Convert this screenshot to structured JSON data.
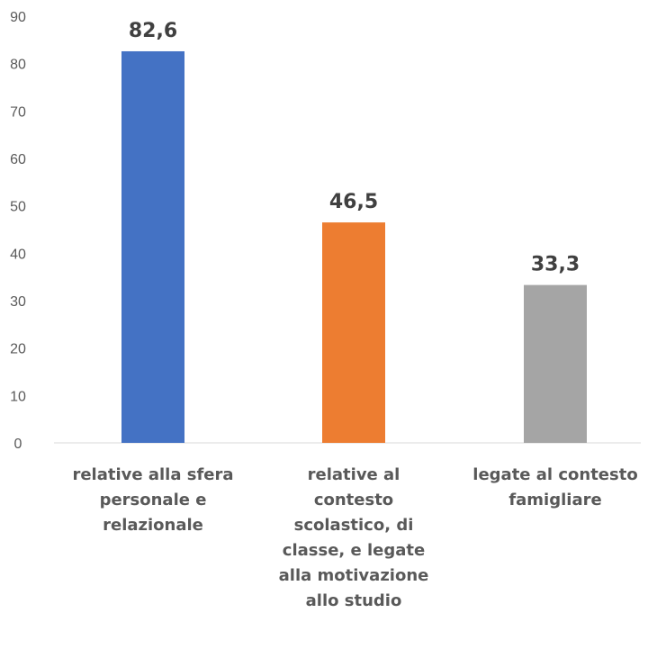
{
  "chart_data": {
    "type": "bar",
    "categories": [
      "relative alla sfera personale e relazionale",
      "relative al contesto scolastico, di classe, e legate alla motivazione allo  studio",
      "legate al contesto famigliare"
    ],
    "category_lines": [
      [
        "relative alla sfera",
        "personale e",
        "relazionale"
      ],
      [
        "relative al",
        "contesto",
        "scolastico, di",
        "classe, e legate",
        "alla motivazione",
        "allo  studio"
      ],
      [
        "legate al contesto",
        "famigliare"
      ]
    ],
    "values": [
      82.6,
      46.5,
      33.3
    ],
    "data_labels": [
      "82,6",
      "46,5",
      "33,3"
    ],
    "colors": [
      "#4472C4",
      "#ED7D31",
      "#A5A5A5"
    ],
    "ylim": [
      0,
      90
    ],
    "yticks": [
      0,
      10,
      20,
      30,
      40,
      50,
      60,
      70,
      80,
      90
    ],
    "grid": false,
    "legend": "none"
  }
}
